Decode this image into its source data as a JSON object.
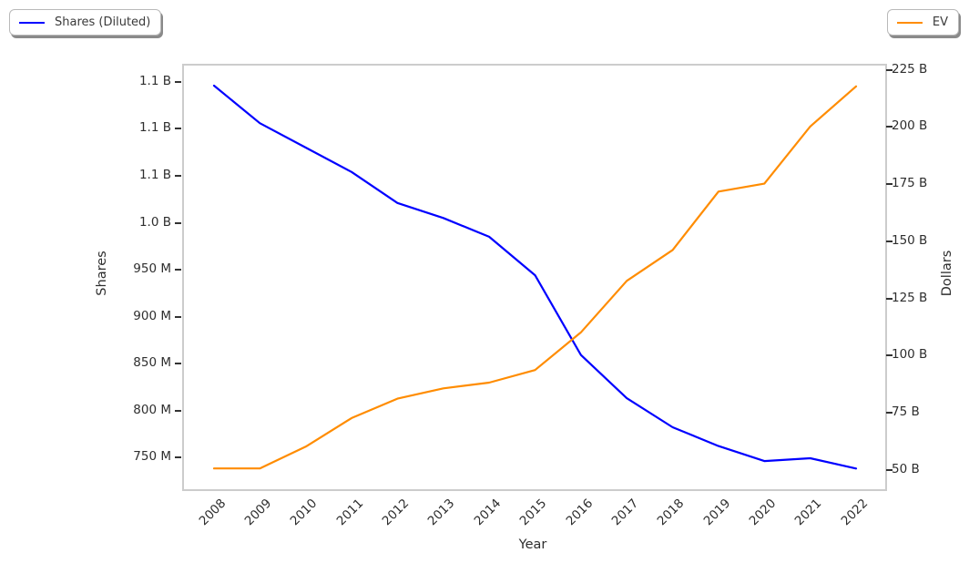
{
  "chart_data": {
    "type": "line",
    "title": "",
    "grid": false,
    "x": [
      2008,
      2009,
      2010,
      2011,
      2012,
      2013,
      2014,
      2015,
      2016,
      2017,
      2018,
      2019,
      2020,
      2021,
      2022
    ],
    "series": [
      {
        "name": "Shares (Diluted)",
        "axis": "left",
        "unit": "millions of shares",
        "color": "#0000ff",
        "values": [
          1148,
          1108,
          1082,
          1056,
          1023,
          1007,
          987,
          946,
          861,
          815,
          784,
          764,
          748,
          751,
          740
        ]
      },
      {
        "name": "EV",
        "axis": "right",
        "unit": "billions of dollars",
        "color": "#ff8c00",
        "values": [
          51.5,
          51.5,
          61,
          73.5,
          82,
          86.5,
          89,
          94.5,
          111,
          133.5,
          147,
          172.5,
          176,
          201,
          218.5
        ]
      }
    ],
    "x_axis": {
      "label": "Year",
      "ticks": [
        "2008",
        "2009",
        "2010",
        "2011",
        "2012",
        "2013",
        "2014",
        "2015",
        "2016",
        "2017",
        "2018",
        "2019",
        "2020",
        "2021",
        "2022"
      ],
      "range": [
        2007.345,
        2022.635
      ]
    },
    "left_axis": {
      "label": "Shares",
      "ticks": [
        {
          "value": 1150,
          "label": "1.1 B"
        },
        {
          "value": 1100,
          "label": "1.1 B"
        },
        {
          "value": 1050,
          "label": "1.1 B"
        },
        {
          "value": 1000,
          "label": "1.0 B"
        },
        {
          "value": 950,
          "label": "950 M"
        },
        {
          "value": 900,
          "label": "900 M"
        },
        {
          "value": 850,
          "label": "850 M"
        },
        {
          "value": 800,
          "label": "800 M"
        },
        {
          "value": 750,
          "label": "750 M"
        }
      ],
      "range_millions": [
        718,
        1169.4
      ]
    },
    "right_axis": {
      "label": "Dollars",
      "ticks": [
        {
          "value": 225,
          "label": "225 B"
        },
        {
          "value": 200,
          "label": "200 B"
        },
        {
          "value": 175,
          "label": "175 B"
        },
        {
          "value": 150,
          "label": "150 B"
        },
        {
          "value": 125,
          "label": "125 B"
        },
        {
          "value": 100,
          "label": "100 B"
        },
        {
          "value": 75,
          "label": "75 B"
        },
        {
          "value": 50,
          "label": "50 B"
        }
      ],
      "range_billions": [
        42.4,
        227.6
      ]
    },
    "legend": [
      {
        "label": "Shares (Diluted)",
        "color": "#0000ff",
        "position": "top-left"
      },
      {
        "label": "EV",
        "color": "#ff8c00",
        "position": "top-right"
      }
    ],
    "colors": {
      "spine": "#cccccc",
      "tick_mark": "#333333",
      "text": "#2e2e2e",
      "background": "#ffffff",
      "legend_shadow": "#8a8a8a"
    }
  }
}
